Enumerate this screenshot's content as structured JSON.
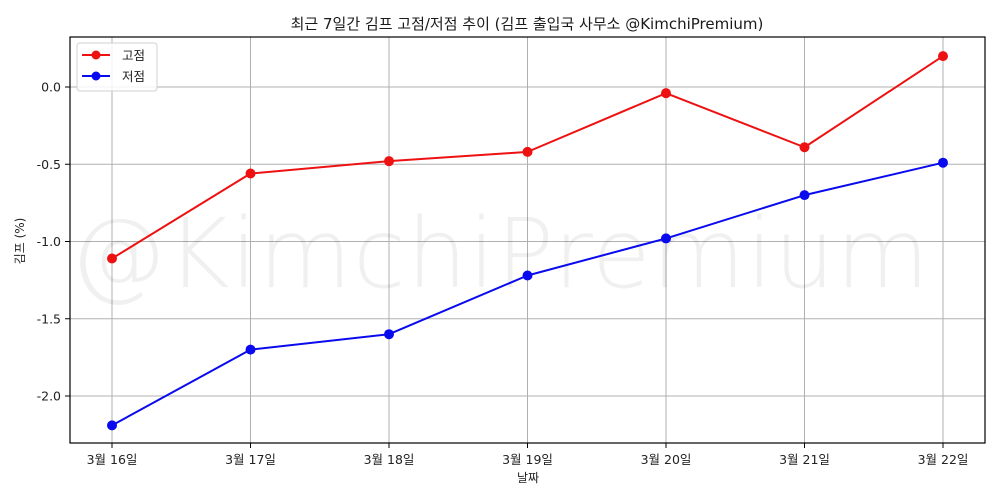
{
  "chart_data": {
    "type": "line",
    "title": "최근 7일간 김프 고점/저점 추이 (김프 출입국 사무소 @KimchiPremium)",
    "xlabel": "날짜",
    "ylabel": "김프 (%)",
    "categories": [
      "3월 16일",
      "3월 17일",
      "3월 18일",
      "3월 19일",
      "3월 20일",
      "3월 21일",
      "3월 22일"
    ],
    "series": [
      {
        "name": "고점",
        "color": "#ee1111",
        "marker": "circle",
        "values": [
          -1.11,
          -0.56,
          -0.48,
          -0.42,
          -0.04,
          -0.39,
          0.2
        ]
      },
      {
        "name": "저점",
        "color": "#0a0aee",
        "marker": "circle",
        "values": [
          -2.19,
          -1.7,
          -1.6,
          -1.22,
          -0.98,
          -0.7,
          -0.49
        ]
      }
    ],
    "yticks": [
      "0.0",
      "-0.5",
      "-1.0",
      "-1.5",
      "-2.0"
    ],
    "ytick_values": [
      0.0,
      -0.5,
      -1.0,
      -1.5,
      -2.0
    ],
    "ylim": [
      -2.3,
      0.32
    ],
    "grid": true,
    "legend_position": "upper left",
    "watermark": "@KimchiPremium"
  }
}
